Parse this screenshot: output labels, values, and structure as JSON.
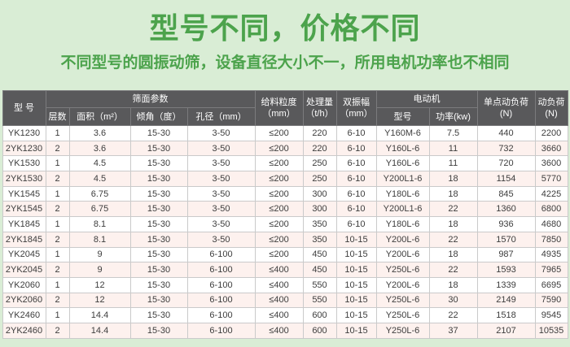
{
  "page": {
    "title": "型号不同，价格不同",
    "subtitle": "不同型号的圆振动筛，设备直径大小不一，所用电机功率也不相同",
    "colors": {
      "background": "#d9edd5",
      "title_green": "#4ca34c",
      "header_bg": "#59595b",
      "header_text": "#ffffff",
      "row_alt_pink": "#fdf1ee",
      "cell_border": "#cacaca"
    }
  },
  "table": {
    "header": {
      "model": "型 号",
      "screen_params_group": "筛面参数",
      "layers": "层数",
      "area": "面积（m²）",
      "incline": "倾角（度）",
      "aperture": "孔径（mm）",
      "feed_size_line1": "给料粒度",
      "feed_size_line2": "（mm）",
      "capacity_line1": "处理量",
      "capacity_line2": "（t/h）",
      "amplitude_line1": "双振幅",
      "amplitude_line2": "（mm）",
      "motor_group": "电动机",
      "motor_model": "型号",
      "motor_power": "功率(kw)",
      "point_load_line1": "单点动负荷",
      "point_load_line2": "(N)",
      "dyn_load_line1": "动负荷",
      "dyn_load_line2": "(N)"
    },
    "rows": [
      [
        "YK1230",
        "1",
        "3.6",
        "15-30",
        "3-50",
        "≤200",
        "220",
        "6-10",
        "Y160M-6",
        "7.5",
        "440",
        "2200"
      ],
      [
        "2YK1230",
        "2",
        "3.6",
        "15-30",
        "3-50",
        "≤200",
        "220",
        "6-10",
        "Y160L-6",
        "11",
        "732",
        "3660"
      ],
      [
        "YK1530",
        "1",
        "4.5",
        "15-30",
        "3-50",
        "≤200",
        "250",
        "6-10",
        "Y160L-6",
        "11",
        "720",
        "3600"
      ],
      [
        "2YK1530",
        "2",
        "4.5",
        "15-30",
        "3-50",
        "≤200",
        "250",
        "6-10",
        "Y200L1-6",
        "18",
        "1154",
        "5770"
      ],
      [
        "YK1545",
        "1",
        "6.75",
        "15-30",
        "3-50",
        "≤200",
        "300",
        "6-10",
        "Y180L-6",
        "18",
        "845",
        "4225"
      ],
      [
        "2YK1545",
        "2",
        "6.75",
        "15-30",
        "3-50",
        "≤200",
        "300",
        "6-10",
        "Y200L1-6",
        "22",
        "1360",
        "6800"
      ],
      [
        "YK1845",
        "1",
        "8.1",
        "15-30",
        "3-50",
        "≤200",
        "350",
        "6-10",
        "Y180L-6",
        "18",
        "936",
        "4680"
      ],
      [
        "2YK1845",
        "2",
        "8.1",
        "15-30",
        "3-50",
        "≤200",
        "350",
        "10-15",
        "Y200L-6",
        "22",
        "1570",
        "7850"
      ],
      [
        "YK2045",
        "1",
        "9",
        "15-30",
        "6-100",
        "≤200",
        "450",
        "10-15",
        "Y200L-6",
        "18",
        "987",
        "4935"
      ],
      [
        "2YK2045",
        "2",
        "9",
        "15-30",
        "6-100",
        "≤400",
        "450",
        "10-15",
        "Y250L-6",
        "22",
        "1593",
        "7965"
      ],
      [
        "YK2060",
        "1",
        "12",
        "15-30",
        "6-100",
        "≤400",
        "550",
        "10-15",
        "Y200L-6",
        "18",
        "1339",
        "6695"
      ],
      [
        "2YK2060",
        "2",
        "12",
        "15-30",
        "6-100",
        "≤400",
        "550",
        "10-15",
        "Y250L-6",
        "30",
        "2149",
        "7590"
      ],
      [
        "YK2460",
        "1",
        "14.4",
        "15-30",
        "6-100",
        "≤400",
        "600",
        "10-15",
        "Y250L-6",
        "22",
        "1518",
        "9545"
      ],
      [
        "2YK2460",
        "2",
        "14.4",
        "15-30",
        "6-100",
        "≤400",
        "600",
        "10-15",
        "Y250L-6",
        "37",
        "2107",
        "10535"
      ]
    ]
  }
}
